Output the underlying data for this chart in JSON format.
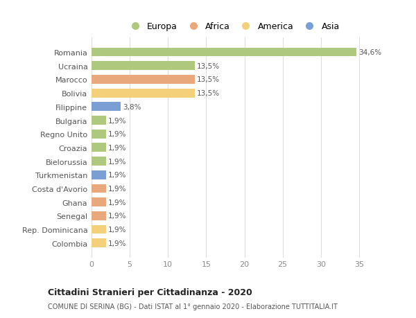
{
  "countries": [
    "Romania",
    "Ucraina",
    "Marocco",
    "Bolivia",
    "Filippine",
    "Bulgaria",
    "Regno Unito",
    "Croazia",
    "Bielorussia",
    "Turkmenistan",
    "Costa d'Avorio",
    "Ghana",
    "Senegal",
    "Rep. Dominicana",
    "Colombia"
  ],
  "values": [
    34.6,
    13.5,
    13.5,
    13.5,
    3.8,
    1.9,
    1.9,
    1.9,
    1.9,
    1.9,
    1.9,
    1.9,
    1.9,
    1.9,
    1.9
  ],
  "labels": [
    "34,6%",
    "13,5%",
    "13,5%",
    "13,5%",
    "3,8%",
    "1,9%",
    "1,9%",
    "1,9%",
    "1,9%",
    "1,9%",
    "1,9%",
    "1,9%",
    "1,9%",
    "1,9%",
    "1,9%"
  ],
  "continents": [
    "Europa",
    "Europa",
    "Africa",
    "America",
    "Asia",
    "Europa",
    "Europa",
    "Europa",
    "Europa",
    "Asia",
    "Africa",
    "Africa",
    "Africa",
    "America",
    "America"
  ],
  "colors": {
    "Europa": "#aec97e",
    "Africa": "#e8a87c",
    "America": "#f5d07a",
    "Asia": "#7b9fd4"
  },
  "xlim": [
    0,
    37
  ],
  "xticks": [
    0,
    5,
    10,
    15,
    20,
    25,
    30,
    35
  ],
  "title": "Cittadini Stranieri per Cittadinanza - 2020",
  "subtitle": "COMUNE DI SERINA (BG) - Dati ISTAT al 1° gennaio 2020 - Elaborazione TUTTITALIA.IT",
  "background_color": "#ffffff",
  "grid_color": "#dddddd",
  "bar_height": 0.65,
  "legend_order": [
    "Europa",
    "Africa",
    "America",
    "Asia"
  ]
}
